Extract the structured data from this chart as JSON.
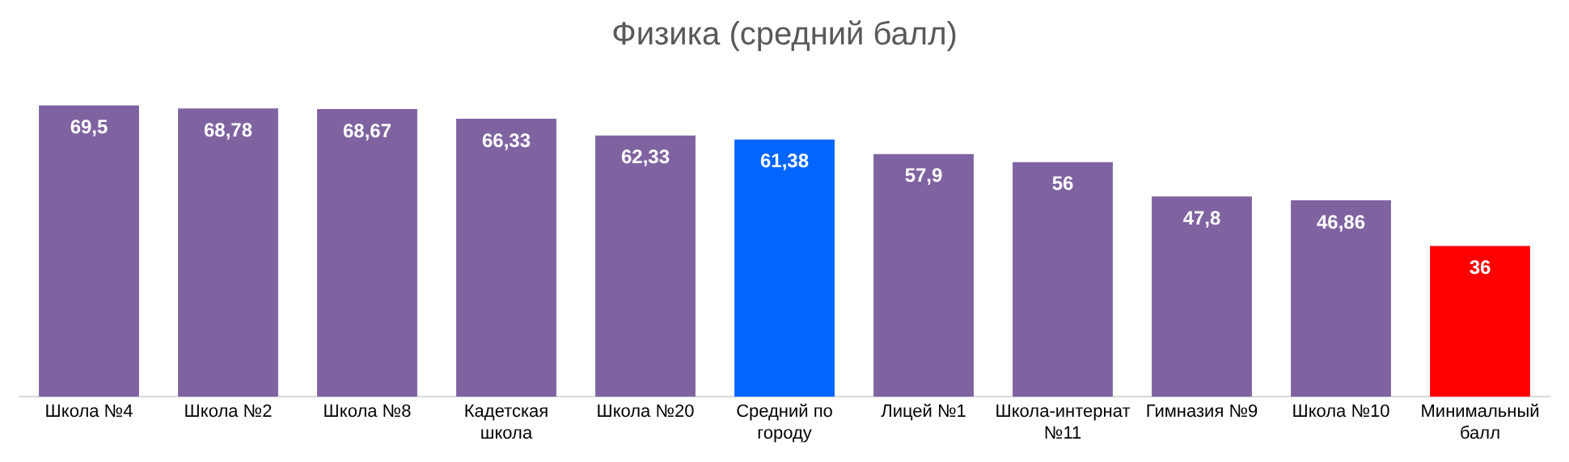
{
  "chart_data": {
    "type": "bar",
    "title": "Физика (средний балл)",
    "categories": [
      "Школа №4",
      "Школа №2",
      "Школа №8",
      "Кадетская школа",
      "Школа №20",
      "Средний по городу",
      "Лицей №1",
      "Школа-интернат №11",
      "Гимназия №9",
      "Школа №10",
      "Минимальный балл"
    ],
    "values": [
      69.5,
      68.78,
      68.67,
      66.33,
      62.33,
      61.38,
      57.9,
      56,
      47.8,
      46.86,
      36
    ],
    "colors": [
      "#7f63a1",
      "#7f63a1",
      "#7f63a1",
      "#7f63a1",
      "#7f63a1",
      "#0066ff",
      "#7f63a1",
      "#7f63a1",
      "#7f63a1",
      "#7f63a1",
      "#ff0000"
    ],
    "value_labels": [
      "69,5",
      "68,78",
      "68,67",
      "66,33",
      "62,33",
      "61,38",
      "57,9",
      "56",
      "47,8",
      "46,86",
      "36"
    ],
    "grid": false,
    "legend": false
  }
}
